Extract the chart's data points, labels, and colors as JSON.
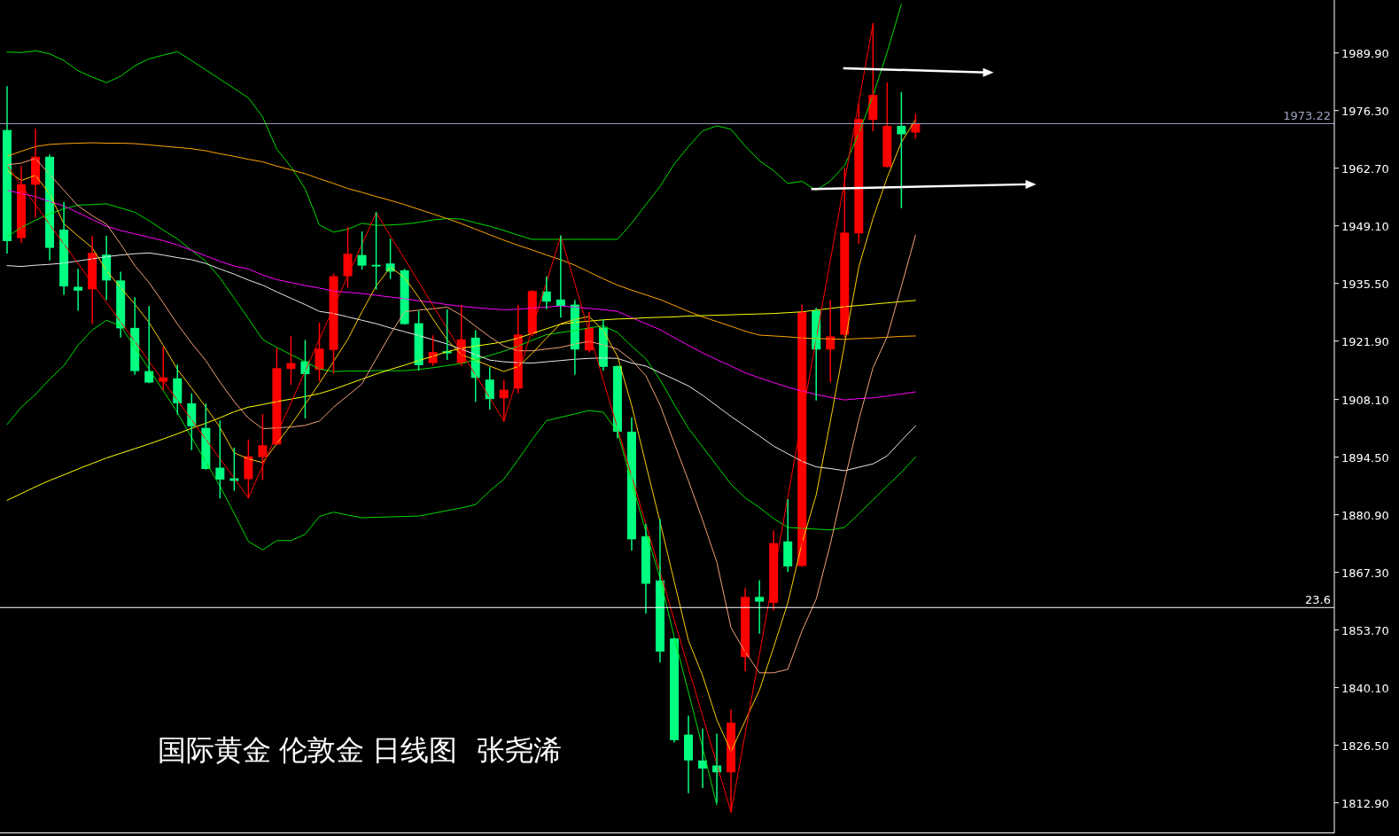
{
  "chart_data": {
    "type": "candlestick",
    "title": "国际黄金 伦敦金 日线图",
    "annotations": [
      "张尧浠",
      {
        "text": "23.6",
        "y": 1859.0
      }
    ],
    "categories": [
      null,
      null,
      null,
      null,
      null,
      null,
      null,
      null,
      null,
      null,
      null,
      null,
      null,
      null,
      null,
      null,
      null,
      null,
      null,
      null,
      null,
      null,
      null,
      null,
      null,
      null,
      null,
      null,
      null,
      null,
      null,
      null,
      null,
      null,
      null,
      null,
      null,
      null,
      null,
      null,
      null,
      null,
      null,
      null,
      null,
      null,
      null,
      null,
      null,
      null,
      null,
      null,
      null,
      null,
      null,
      null,
      null,
      null,
      null,
      null,
      null,
      null,
      null,
      null,
      null,
      null,
      null,
      null,
      null,
      null,
      null,
      null,
      null,
      null,
      null,
      null,
      null,
      null,
      null,
      null,
      null,
      null,
      null,
      null,
      null,
      null,
      null,
      null,
      null,
      null,
      null,
      null,
      null,
      null
    ],
    "ohlc": [
      [
        1971.7,
        1981.9,
        1942.7,
        1945.5
      ],
      [
        1946.2,
        1963.1,
        1945.2,
        1958.9
      ],
      [
        1958.8,
        1971.9,
        1951.2,
        1965.4
      ],
      [
        1965.4,
        1965.8,
        1941.1,
        1943.9
      ],
      [
        1948.2,
        1954.6,
        1933.0,
        1934.8
      ],
      [
        1934.7,
        1938.8,
        1929.2,
        1933.8
      ],
      [
        1934.1,
        1946.6,
        1926.1,
        1942.7
      ],
      [
        1942.3,
        1946.6,
        1931.7,
        1936.2
      ],
      [
        1936.2,
        1938.1,
        1922.9,
        1924.9
      ],
      [
        1925.0,
        1932.1,
        1914.1,
        1914.8
      ],
      [
        1914.8,
        1930.0,
        1912.1,
        1912.1
      ],
      [
        1912.3,
        1920.4,
        1910.5,
        1913.3
      ],
      [
        1913.1,
        1916.2,
        1904.7,
        1907.2
      ],
      [
        1907.2,
        1909.4,
        1896.3,
        1901.8
      ],
      [
        1901.4,
        1907.0,
        1891.7,
        1891.7
      ],
      [
        1892.0,
        1903.0,
        1884.9,
        1889.2
      ],
      [
        1889.5,
        1896.6,
        1886.7,
        1888.9
      ],
      [
        1889.3,
        1898.5,
        1884.9,
        1894.7
      ],
      [
        1894.5,
        1904.5,
        1889.3,
        1897.3
      ],
      [
        1897.5,
        1920.1,
        1897.5,
        1915.5
      ],
      [
        1915.3,
        1922.9,
        1911.7,
        1916.7
      ],
      [
        1917.1,
        1922.0,
        1903.8,
        1914.1
      ],
      [
        1915.1,
        1926.1,
        1912.6,
        1920.1
      ],
      [
        1919.8,
        1937.7,
        1914.4,
        1937.2
      ],
      [
        1937.2,
        1948.7,
        1934.6,
        1942.5
      ],
      [
        1942.2,
        1947.6,
        1938.9,
        1939.7
      ],
      [
        1939.9,
        1952.2,
        1934.2,
        1939.5
      ],
      [
        1940.2,
        1945.9,
        1936.7,
        1938.3
      ],
      [
        1938.6,
        1938.8,
        1925.9,
        1925.9
      ],
      [
        1926.1,
        1928.9,
        1915.1,
        1916.2
      ],
      [
        1916.7,
        1923.1,
        1916.2,
        1919.3
      ],
      [
        1919.5,
        1929.2,
        1917.6,
        1919.0
      ],
      [
        1916.7,
        1930.3,
        1916.2,
        1922.3
      ],
      [
        1922.7,
        1924.3,
        1907.7,
        1913.2
      ],
      [
        1912.8,
        1915.6,
        1905.9,
        1908.2
      ],
      [
        1908.4,
        1912.6,
        1903.0,
        1910.4
      ],
      [
        1910.7,
        1930.3,
        1909.7,
        1923.4
      ],
      [
        1923.6,
        1933.8,
        1923.2,
        1933.7
      ],
      [
        1933.6,
        1937.0,
        1929.6,
        1931.2
      ],
      [
        1931.7,
        1946.7,
        1927.6,
        1930.2
      ],
      [
        1930.5,
        1931.4,
        1914.1,
        1919.9
      ],
      [
        1919.7,
        1928.6,
        1919.3,
        1925.0
      ],
      [
        1925.1,
        1926.9,
        1915.1,
        1915.8
      ],
      [
        1916.0,
        1916.0,
        1899.1,
        1900.5
      ],
      [
        1900.5,
        1903.7,
        1872.6,
        1875.1
      ],
      [
        1875.8,
        1878.6,
        1857.7,
        1864.6
      ],
      [
        1865.4,
        1879.7,
        1846.2,
        1848.6
      ],
      [
        1851.7,
        1851.7,
        1827.3,
        1827.7
      ],
      [
        1829.0,
        1833.3,
        1815.3,
        1822.9
      ],
      [
        1822.9,
        1830.3,
        1816.5,
        1821.0
      ],
      [
        1821.7,
        1829.1,
        1813.0,
        1820.1
      ],
      [
        1820.1,
        1834.8,
        1810.7,
        1831.8
      ],
      [
        1847.3,
        1863.4,
        1844.1,
        1861.5
      ],
      [
        1861.5,
        1865.3,
        1853.0,
        1860.4
      ],
      [
        1860.1,
        1877.0,
        1858.5,
        1874.2
      ],
      [
        1874.6,
        1884.4,
        1867.6,
        1868.7
      ],
      [
        1868.8,
        1930.3,
        1868.8,
        1928.7
      ],
      [
        1929.1,
        1929.6,
        1908.0,
        1919.9
      ],
      [
        1919.9,
        1931.4,
        1912.3,
        1923.0
      ],
      [
        1923.4,
        1962.5,
        1922.9,
        1947.5
      ],
      [
        1947.3,
        1977.7,
        1945.0,
        1974.3
      ],
      [
        1974.1,
        1996.8,
        1971.6,
        1980.0
      ],
      [
        1963.0,
        1982.8,
        1963.0,
        1972.7
      ],
      [
        1972.7,
        1980.5,
        1953.4,
        1970.7
      ],
      [
        1971.1,
        1975.4,
        1969.8,
        1973.3
      ],
      null,
      null,
      null,
      null,
      null,
      null,
      null,
      null,
      null,
      null,
      null,
      null,
      null,
      null,
      null,
      null,
      null,
      null,
      null,
      null,
      null,
      null,
      null,
      null,
      null,
      null,
      null,
      null,
      null
    ],
    "colors": [
      "#00ff80",
      "#ff0000",
      "#ff0000",
      "#00ff80",
      "#00ff80",
      "#00ff80",
      "#ff0000",
      "#00ff80",
      "#00ff80",
      "#00ff80",
      "#00ff80",
      "#ff0000",
      "#00ff80",
      "#00ff80",
      "#00ff80",
      "#00ff80",
      "#00ff80",
      "#ff0000",
      "#ff0000",
      "#ff0000",
      "#ff0000",
      "#00ff80",
      "#ff0000",
      "#ff0000",
      "#ff0000",
      "#00ff80",
      "#00ff80",
      "#00ff80",
      "#00ff80",
      "#00ff80",
      "#ff0000",
      "#00ff80",
      "#ff0000",
      "#00ff80",
      "#00ff80",
      "#ff0000",
      "#ff0000",
      "#ff0000",
      "#00ff80",
      "#00ff80",
      "#00ff80",
      "#ff0000",
      "#00ff80",
      "#00ff80",
      "#00ff80",
      "#00ff80",
      "#00ff80",
      "#00ff80",
      "#00ff80",
      "#00ff80",
      "#00ff80",
      "#ff0000",
      "#ff0000",
      "#00ff80",
      "#ff0000",
      "#00ff80",
      "#ff0000",
      "#00ff80",
      "#ff0000",
      "#ff0000",
      "#ff0000",
      "#ff0000",
      "#ff0000",
      "#00ff80",
      "#ff0000",
      null,
      null,
      null,
      null,
      null,
      null,
      null,
      null,
      null,
      null,
      null,
      null,
      null,
      null,
      null,
      null,
      null,
      null,
      null,
      null,
      null,
      null,
      null,
      null,
      null,
      null,
      null,
      null,
      null
    ],
    "series": [
      {
        "type": "line",
        "color": "#00dd00",
        "values": [
          1990.1,
          1990.0,
          1990.4,
          1989.7,
          1988.1,
          1985.7,
          1984.2,
          1982.9,
          1984.4,
          1986.9,
          1988.5,
          1989.4,
          1990.2,
          1988.1,
          1985.9,
          1983.7,
          1981.5,
          1979.3,
          1974.8,
          1967.2,
          1963.0,
          1957.8,
          1949.3,
          1947.6,
          1948.3,
          1949.7,
          1949.2,
          1949.3,
          1949.5,
          1949.9,
          1950.5,
          1950.8,
          1950.7,
          1949.8,
          1949.0,
          1948.0,
          1946.9,
          1945.9,
          1945.9,
          1945.9,
          1945.9,
          1945.9,
          1945.9,
          1945.9,
          1949.7,
          1954.1,
          1958.4,
          1963.7,
          1967.8,
          1971.5,
          1972.7,
          1971.9,
          1967.9,
          1964.5,
          1962.1,
          1959.1,
          1959.6,
          1957.5,
          1959.7,
          1963.3,
          1970.9,
          1979.8,
          1990.1,
          2001.4,
          null,
          null,
          null,
          null,
          null,
          null,
          null,
          null,
          null,
          null,
          null,
          null,
          null,
          null,
          null,
          null,
          null,
          null,
          null,
          null,
          null,
          null,
          null,
          null,
          null,
          null,
          null,
          null,
          null,
          null
        ]
      },
      {
        "type": "line",
        "color": "#00dd00",
        "values": [
          1946.5,
          1948.7,
          1950.4,
          1951.9,
          1953.1,
          1954.0,
          1954.1,
          1954.3,
          1953.3,
          1952.3,
          1950.3,
          1948.1,
          1946.0,
          1943.3,
          1940.7,
          1936.8,
          1932.0,
          1927.2,
          1922.3,
          1920.4,
          1918.7,
          1917.0,
          1915.3,
          1914.7,
          1914.8,
          1914.8,
          1914.9,
          1914.9,
          1914.9,
          1915.2,
          1915.6,
          1916.1,
          1916.6,
          1917.5,
          1918.5,
          1919.5,
          1920.7,
          1922.1,
          1923.4,
          1923.9,
          1924.4,
          1925.0,
          1925.5,
          1923.9,
          1920.7,
          1917.7,
          1912.8,
          1906.9,
          1901.3,
          1896.9,
          1892.5,
          1888.1,
          1884.9,
          1882.6,
          1880.0,
          1877.9,
          1877.7,
          1877.5,
          1877.3,
          1877.9,
          1881.1,
          1884.4,
          1887.7,
          1890.9,
          1894.5,
          null,
          null,
          null,
          null,
          null,
          null,
          null,
          null,
          null,
          null,
          null,
          null,
          null,
          null,
          null,
          null,
          null,
          null,
          null,
          null,
          null,
          null,
          null,
          null,
          null,
          null,
          null,
          null,
          null
        ]
      },
      {
        "type": "line",
        "color": "#00dd00",
        "values": [
          1902.2,
          1906.3,
          1909.3,
          1912.9,
          1916.1,
          1920.9,
          1924.5,
          1926.8,
          1925.5,
          1920.4,
          1915.3,
          1910.2,
          1905.0,
          1899.1,
          1893.4,
          1887.6,
          1881.2,
          1874.6,
          1872.6,
          1874.8,
          1874.8,
          1876.3,
          1880.5,
          1881.5,
          1880.8,
          1880.2,
          1880.3,
          1880.4,
          1880.5,
          1880.6,
          1881.2,
          1881.9,
          1882.5,
          1883.3,
          1886.5,
          1889.3,
          1893.9,
          1898.7,
          1903.1,
          1903.9,
          1904.7,
          1905.5,
          1905.1,
          1900.5,
          1888.6,
          1876.9,
          1865.9,
          1852.0,
          1839.0,
          1825.9,
          1812.3,
          null,
          null,
          null,
          null,
          null,
          null,
          null,
          null,
          null,
          null,
          null,
          null,
          null,
          null,
          null,
          null,
          null,
          null,
          null,
          null,
          null,
          null,
          null,
          null,
          null,
          null,
          null,
          null,
          null,
          null,
          null,
          null,
          null,
          null,
          null,
          null,
          null,
          null,
          null,
          null,
          null,
          null,
          null
        ]
      },
      {
        "type": "line",
        "color": "#ffa500",
        "values": [
          1965.5,
          1966.7,
          1967.8,
          1968.3,
          1968.5,
          1968.6,
          1968.7,
          1968.6,
          1968.6,
          1968.5,
          1968.2,
          1967.9,
          1967.6,
          1967.3,
          1966.8,
          1966.1,
          1965.5,
          1964.8,
          1964.2,
          1963.2,
          1962.3,
          1961.4,
          1960.2,
          1959.1,
          1957.9,
          1957.0,
          1956.0,
          1955.1,
          1954.1,
          1953.0,
          1951.9,
          1950.8,
          1949.6,
          1948.3,
          1947.0,
          1945.7,
          1944.5,
          1943.4,
          1942.2,
          1941.1,
          1939.8,
          1938.2,
          1936.6,
          1935.1,
          1933.9,
          1932.8,
          1931.7,
          1930.3,
          1928.9,
          1927.6,
          1926.5,
          1925.4,
          1924.2,
          1923.3,
          1923.1,
          1922.9,
          1922.6,
          1922.5,
          1922.4,
          1922.3,
          1922.5,
          1922.6,
          1922.8,
          1923.0,
          1923.1,
          null,
          null,
          null,
          null,
          null,
          null,
          null,
          null,
          null,
          null,
          null,
          null,
          null,
          null,
          null,
          null,
          null,
          null,
          null,
          null,
          null,
          null,
          null,
          null,
          null,
          null,
          null,
          null,
          null
        ]
      },
      {
        "type": "line",
        "color": "#ff00ff",
        "values": [
          1957.5,
          1956.7,
          1956.0,
          1954.8,
          1953.8,
          1952.2,
          1950.6,
          1949.0,
          1948.0,
          1947.2,
          1946.4,
          1945.6,
          1944.6,
          1943.3,
          1942.0,
          1940.7,
          1939.6,
          1938.9,
          1937.5,
          1936.4,
          1935.7,
          1935.0,
          1934.4,
          1933.7,
          1933.4,
          1933.1,
          1932.7,
          1932.3,
          1931.9,
          1931.4,
          1931.0,
          1930.5,
          1930.1,
          1929.8,
          1929.5,
          1929.3,
          1929.4,
          1929.7,
          1929.9,
          1930.2,
          1929.9,
          1929.6,
          1929.3,
          1928.9,
          1927.4,
          1926.0,
          1924.6,
          1922.7,
          1920.9,
          1919.1,
          1917.5,
          1916.0,
          1914.4,
          1913.2,
          1912.1,
          1911.0,
          1910.1,
          1909.3,
          1908.6,
          1908.0,
          1908.3,
          1908.5,
          1908.9,
          1909.4,
          1909.9,
          null,
          null,
          null,
          null,
          null,
          null,
          null,
          null,
          null,
          null,
          null,
          null,
          null,
          null,
          null,
          null,
          null,
          null,
          null,
          null,
          null,
          null,
          null,
          null,
          null,
          null,
          null,
          null,
          null
        ]
      },
      {
        "type": "line",
        "color": "#e8e8e8",
        "values": [
          1939.7,
          1939.5,
          1939.8,
          1940.0,
          1940.3,
          1940.8,
          1941.3,
          1941.8,
          1942.2,
          1942.5,
          1942.7,
          1942.2,
          1941.6,
          1941.1,
          1940.2,
          1938.9,
          1937.7,
          1936.3,
          1935.1,
          1933.5,
          1932.0,
          1930.5,
          1928.9,
          1928.4,
          1927.6,
          1926.8,
          1926.0,
          1925.0,
          1924.1,
          1923.2,
          1922.2,
          1921.2,
          1920.0,
          1918.7,
          1917.4,
          1917.0,
          1916.8,
          1916.7,
          1917.0,
          1917.3,
          1917.6,
          1917.8,
          1917.9,
          1917.8,
          1916.7,
          1916.0,
          1914.4,
          1912.9,
          1911.3,
          1909.1,
          1906.6,
          1904.1,
          1901.8,
          1899.5,
          1897.1,
          1895.3,
          1893.5,
          1892.2,
          1891.8,
          1891.3,
          1892.1,
          1892.9,
          1894.8,
          1898.4,
          1901.9,
          null,
          null,
          null,
          null,
          null,
          null,
          null,
          null,
          null,
          null,
          null,
          null,
          null,
          null,
          null,
          null,
          null,
          null,
          null,
          null,
          null,
          null,
          null,
          null,
          null,
          null,
          null,
          null,
          null
        ]
      },
      {
        "type": "line",
        "color": "#ffff00",
        "values": [
          1884.3,
          1885.9,
          1887.5,
          1889.0,
          1890.3,
          1891.7,
          1893.0,
          1894.3,
          1895.4,
          1896.5,
          1897.6,
          1898.8,
          1900.0,
          1901.3,
          1902.5,
          1903.8,
          1905.2,
          1906.3,
          1906.9,
          1907.6,
          1908.2,
          1908.8,
          1909.5,
          1910.5,
          1911.7,
          1912.9,
          1914.1,
          1915.2,
          1916.2,
          1917.3,
          1918.3,
          1919.4,
          1920.2,
          1920.7,
          1921.2,
          1921.7,
          1922.6,
          1923.7,
          1924.8,
          1925.9,
          1926.3,
          1926.6,
          1926.9,
          1927.1,
          1927.2,
          1927.4,
          1927.5,
          1927.6,
          1927.8,
          1927.9,
          1928.0,
          1928.1,
          1928.2,
          1928.3,
          1928.4,
          1928.6,
          1928.8,
          1929.2,
          1929.6,
          1930.0,
          1930.3,
          1930.6,
          1930.9,
          1931.2,
          1931.5,
          null,
          null,
          null,
          null,
          null,
          null,
          null,
          null,
          null,
          null,
          null,
          null,
          null,
          null,
          null,
          null,
          null,
          null,
          null,
          null,
          null,
          null,
          null,
          null,
          null,
          null,
          null,
          null,
          null
        ]
      },
      {
        "type": "line",
        "color": "#f4a07a",
        "values": [
          1963.5,
          1963.9,
          1965.0,
          1961.2,
          1957.5,
          1953.8,
          1951.5,
          1949.5,
          1944.8,
          1939.7,
          1935.7,
          1930.9,
          1925.9,
          1921.4,
          1917.3,
          1912.2,
          1907.6,
          1903.7,
          1901.2,
          1901.4,
          1901.6,
          1902.0,
          1903.0,
          1906.3,
          1909.0,
          1911.8,
          1917.7,
          1923.5,
          1928.8,
          1929.2,
          1929.5,
          1929.9,
          1928.0,
          1925.4,
          1922.9,
          1920.7,
          1919.6,
          1919.6,
          1920.0,
          1920.4,
          1921.2,
          1921.8,
          1921.0,
          1920.0,
          1917.4,
          1913.7,
          1906.8,
          1897.8,
          1888.9,
          1879.6,
          1869.7,
          1854.2,
          1848.5,
          1843.6,
          1843.6,
          1844.4,
          1853.5,
          1861.0,
          1874.0,
          1888.9,
          1903.3,
          1915.6,
          1922.9,
          1934.8,
          1946.9,
          null,
          null,
          null,
          null,
          null,
          null,
          null,
          null,
          null,
          null,
          null,
          null,
          null,
          null,
          null,
          null,
          null,
          null,
          null,
          null,
          null,
          null,
          null,
          null,
          null,
          null,
          null,
          null,
          null
        ]
      },
      {
        "type": "line",
        "color": "#ffcc00",
        "values": [
          1962.1,
          1959.8,
          1961.0,
          1956.6,
          1949.6,
          1946.7,
          1943.9,
          1938.5,
          1934.5,
          1930.6,
          1926.3,
          1920.9,
          1915.2,
          1910.8,
          1906.3,
          1901.5,
          1895.5,
          1894.1,
          1893.2,
          1897.7,
          1902.1,
          1907.0,
          1911.9,
          1917.1,
          1922.3,
          1928.8,
          1934.9,
          1939.3,
          1936.9,
          1932.2,
          1927.1,
          1922.2,
          1918.7,
          1917.4,
          1916.0,
          1914.7,
          1915.9,
          1919.0,
          1922.6,
          1926.0,
          1927.0,
          1927.7,
          1924.4,
          1918.3,
          1906.7,
          1892.8,
          1879.2,
          1865.1,
          1851.2,
          1842.9,
          1832.5,
          1825.0,
          1832.3,
          1839.5,
          1849.6,
          1860.1,
          1874.2,
          1885.6,
          1903.0,
          1921.2,
          1939.4,
          1950.8,
          1960.5,
          1968.8,
          1974.2,
          null,
          null,
          null,
          null,
          null,
          null,
          null,
          null,
          null,
          null,
          null,
          null,
          null,
          null,
          null,
          null,
          null,
          null,
          null,
          null,
          null,
          null,
          null,
          null,
          null,
          null,
          null,
          null,
          null
        ]
      },
      {
        "type": "line",
        "color": "#ff0000",
        "values": [
          1963.3,
          1958.7,
          1954.1,
          1949.4,
          1944.8,
          1940.2,
          1935.6,
          1931.0,
          1926.4,
          1921.8,
          1917.1,
          1912.5,
          1907.9,
          1903.3,
          1898.7,
          1894.1,
          1889.5,
          1884.9,
          1892.4,
          1899.9,
          1907.3,
          1914.8,
          1922.3,
          1929.8,
          1937.3,
          1944.7,
          1952.2,
          1946.7,
          1941.3,
          1935.8,
          1930.3,
          1924.9,
          1919.4,
          1913.9,
          1908.5,
          1903.0,
          1913.9,
          1924.9,
          1935.8,
          1946.7,
          1935.4,
          1924.0,
          1912.7,
          1901.4,
          1890.0,
          1878.7,
          1867.4,
          1856.0,
          1844.7,
          1833.4,
          1822.0,
          1810.7,
          1829.3,
          1847.9,
          1866.5,
          1885.1,
          1903.8,
          1922.4,
          1941.0,
          1959.6,
          1978.2,
          1996.8,
          null,
          null,
          null,
          null,
          null,
          null,
          null,
          null,
          null,
          null,
          null,
          null,
          null,
          null,
          null,
          null,
          null,
          null,
          null,
          null,
          null,
          null,
          null,
          null,
          null,
          null,
          null,
          null,
          null,
          null,
          null,
          null
        ]
      }
    ],
    "ylim": [
      1805.8,
      2002.4
    ],
    "yticks": [
      {
        "value": 1812.9,
        "label": "1812.90"
      },
      {
        "value": 1826.5,
        "label": "1826.50"
      },
      {
        "value": 1840.1,
        "label": "1840.10"
      },
      {
        "value": 1853.7,
        "label": "1853.70"
      },
      {
        "value": 1867.3,
        "label": "1867.30"
      },
      {
        "value": 1880.9,
        "label": "1880.90"
      },
      {
        "value": 1894.5,
        "label": "1894.50"
      },
      {
        "value": 1908.1,
        "label": "1908.10"
      },
      {
        "value": 1921.9,
        "label": "1921.90"
      },
      {
        "value": 1935.5,
        "label": "1935.50"
      },
      {
        "value": 1949.1,
        "label": "1949.10"
      },
      {
        "value": 1962.7,
        "label": "1962.70"
      },
      {
        "value": 1976.3,
        "label": "1976.30"
      },
      {
        "value": 1989.9,
        "label": "1989.90"
      }
    ],
    "tick_labels": "y",
    "ref_lines": [
      {
        "axis": "y",
        "value": 1973.22,
        "label": "1973.22",
        "color": "#a0a4c0"
      },
      {
        "axis": "y",
        "value": 1859.0,
        "color": "#ffffff"
      }
    ]
  }
}
